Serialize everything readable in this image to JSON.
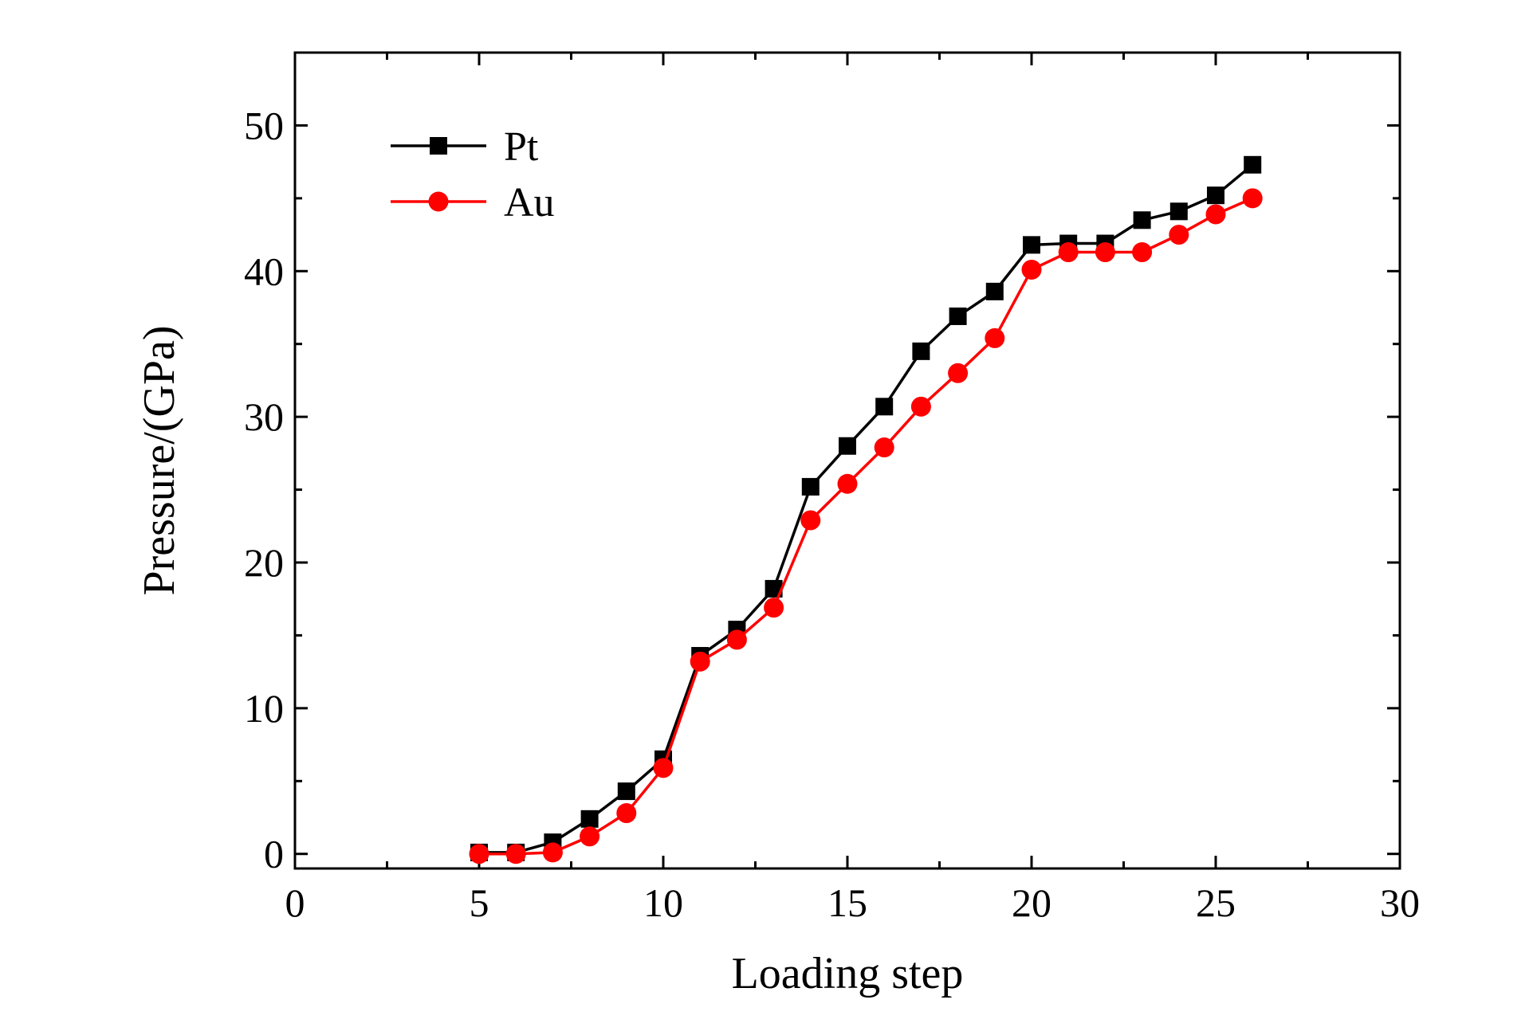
{
  "chart_data": {
    "type": "line",
    "title": "",
    "xlabel": "Loading step",
    "ylabel": "Pressure/(GPa)",
    "xlim": [
      0,
      30
    ],
    "ylim": [
      -1,
      55
    ],
    "x_ticks": [
      0,
      5,
      10,
      15,
      20,
      25,
      30
    ],
    "y_ticks": [
      0,
      10,
      20,
      30,
      40,
      50
    ],
    "grid": false,
    "legend_position": "top-left",
    "x": [
      5,
      6,
      7,
      8,
      9,
      10,
      11,
      12,
      13,
      14,
      15,
      16,
      17,
      18,
      19,
      20,
      21,
      22,
      23,
      24,
      25,
      26
    ],
    "series": [
      {
        "name": "Pt",
        "color": "#000000",
        "marker": "square",
        "values": [
          0.1,
          0.1,
          0.8,
          2.4,
          4.3,
          6.5,
          13.6,
          15.4,
          18.2,
          25.2,
          28.0,
          30.7,
          34.5,
          36.9,
          38.6,
          41.8,
          41.9,
          41.9,
          43.5,
          44.1,
          45.2,
          47.3
        ]
      },
      {
        "name": "Au",
        "color": "#ff0000",
        "marker": "circle",
        "values": [
          0.0,
          0.0,
          0.1,
          1.2,
          2.8,
          5.9,
          13.2,
          14.7,
          16.9,
          22.9,
          25.4,
          27.9,
          30.7,
          33.0,
          35.4,
          40.1,
          41.3,
          41.3,
          41.3,
          42.5,
          43.9,
          45.0
        ]
      }
    ]
  }
}
